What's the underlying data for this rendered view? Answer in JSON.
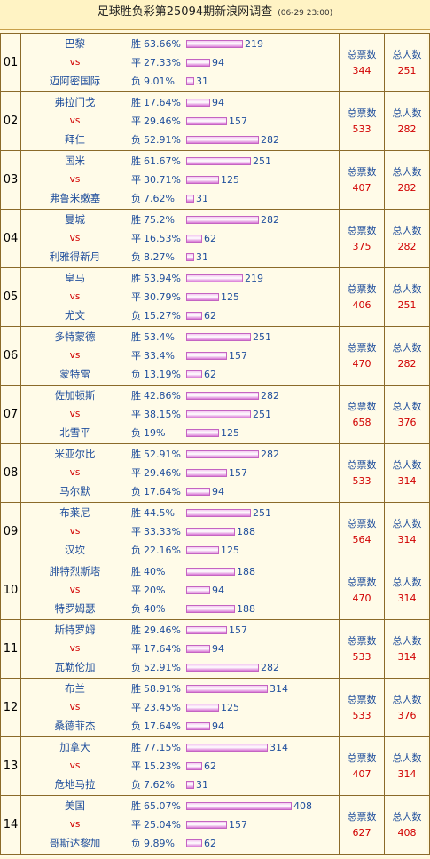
{
  "title": {
    "main": "足球胜负彩第25094期新浪网调查",
    "time": "(06-29 23:00)"
  },
  "labels": {
    "win": "胜",
    "draw": "平",
    "lose": "负",
    "vs": "vs",
    "total_votes": "总票数",
    "total_people": "总人数"
  },
  "colors": {
    "team": "#1f4e9c",
    "vs": "#d10000",
    "number": "#d10000",
    "bar": "#d977d6",
    "border": "#8b6a2a"
  },
  "matches": [
    {
      "no": "01",
      "home": "巴黎",
      "away": "迈阿密国际",
      "win_pct": "63.66%",
      "win": 219,
      "draw_pct": "27.33%",
      "draw": 94,
      "lose_pct": "9.01%",
      "lose": 31,
      "total_votes": "344",
      "total_people": "251"
    },
    {
      "no": "02",
      "home": "弗拉门戈",
      "away": "拜仁",
      "win_pct": "17.64%",
      "win": 94,
      "draw_pct": "29.46%",
      "draw": 157,
      "lose_pct": "52.91%",
      "lose": 282,
      "total_votes": "533",
      "total_people": "282"
    },
    {
      "no": "03",
      "home": "国米",
      "away": "弗鲁米嫩塞",
      "win_pct": "61.67%",
      "win": 251,
      "draw_pct": "30.71%",
      "draw": 125,
      "lose_pct": "7.62%",
      "lose": 31,
      "total_votes": "407",
      "total_people": "282"
    },
    {
      "no": "04",
      "home": "曼城",
      "away": "利雅得新月",
      "win_pct": "75.2%",
      "win": 282,
      "draw_pct": "16.53%",
      "draw": 62,
      "lose_pct": "8.27%",
      "lose": 31,
      "total_votes": "375",
      "total_people": "282"
    },
    {
      "no": "05",
      "home": "皇马",
      "away": "尤文",
      "win_pct": "53.94%",
      "win": 219,
      "draw_pct": "30.79%",
      "draw": 125,
      "lose_pct": "15.27%",
      "lose": 62,
      "total_votes": "406",
      "total_people": "251"
    },
    {
      "no": "06",
      "home": "多特蒙德",
      "away": "蒙特雷",
      "win_pct": "53.4%",
      "win": 251,
      "draw_pct": "33.4%",
      "draw": 157,
      "lose_pct": "13.19%",
      "lose": 62,
      "total_votes": "470",
      "total_people": "282"
    },
    {
      "no": "07",
      "home": "佐加顿斯",
      "away": "北雪平",
      "win_pct": "42.86%",
      "win": 282,
      "draw_pct": "38.15%",
      "draw": 251,
      "lose_pct": "19%",
      "lose": 125,
      "total_votes": "658",
      "total_people": "376"
    },
    {
      "no": "08",
      "home": "米亚尔比",
      "away": "马尔默",
      "win_pct": "52.91%",
      "win": 282,
      "draw_pct": "29.46%",
      "draw": 157,
      "lose_pct": "17.64%",
      "lose": 94,
      "total_votes": "533",
      "total_people": "314"
    },
    {
      "no": "09",
      "home": "布莱尼",
      "away": "汉坎",
      "win_pct": "44.5%",
      "win": 251,
      "draw_pct": "33.33%",
      "draw": 188,
      "lose_pct": "22.16%",
      "lose": 125,
      "total_votes": "564",
      "total_people": "314"
    },
    {
      "no": "10",
      "home": "腓特烈斯塔",
      "away": "特罗姆瑟",
      "win_pct": "40%",
      "win": 188,
      "draw_pct": "20%",
      "draw": 94,
      "lose_pct": "40%",
      "lose": 188,
      "total_votes": "470",
      "total_people": "314"
    },
    {
      "no": "11",
      "home": "斯特罗姆",
      "away": "瓦勒伦加",
      "win_pct": "29.46%",
      "win": 157,
      "draw_pct": "17.64%",
      "draw": 94,
      "lose_pct": "52.91%",
      "lose": 282,
      "total_votes": "533",
      "total_people": "314"
    },
    {
      "no": "12",
      "home": "布兰",
      "away": "桑德菲杰",
      "win_pct": "58.91%",
      "win": 314,
      "draw_pct": "23.45%",
      "draw": 125,
      "lose_pct": "17.64%",
      "lose": 94,
      "total_votes": "533",
      "total_people": "376"
    },
    {
      "no": "13",
      "home": "加拿大",
      "away": "危地马拉",
      "win_pct": "77.15%",
      "win": 314,
      "draw_pct": "15.23%",
      "draw": 62,
      "lose_pct": "7.62%",
      "lose": 31,
      "total_votes": "407",
      "total_people": "314"
    },
    {
      "no": "14",
      "home": "美国",
      "away": "哥斯达黎加",
      "win_pct": "65.07%",
      "win": 408,
      "draw_pct": "25.04%",
      "draw": 157,
      "lose_pct": "9.89%",
      "lose": 62,
      "total_votes": "627",
      "total_people": "408"
    }
  ]
}
